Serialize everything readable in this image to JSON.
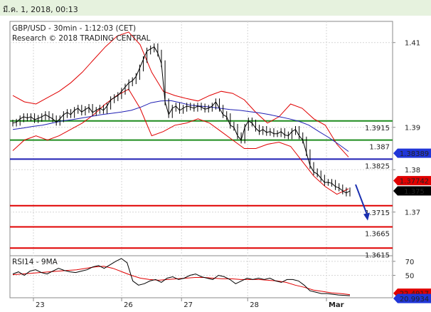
{
  "header": {
    "datetime": "มี.ค. 1, 2018, 00:13"
  },
  "chart_data": {
    "type": "candlestick-with-indicators",
    "title": "GBP/USD - 30min - 1:12:03 (CET)",
    "subtitle": "Research © 2018 TRADING CENTRAL",
    "x_tick_labels": [
      "23",
      "26",
      "27",
      "28",
      "Mar"
    ],
    "y_ticks": [
      1.37,
      1.38,
      1.39,
      1.41
    ],
    "y_tick_labels": [
      "1.37",
      "1.38",
      "1.39",
      "1.41"
    ],
    "ylim": [
      1.3597,
      1.415
    ],
    "levels": [
      {
        "value": 1.3915,
        "label": "1.3915",
        "role": "resistance",
        "color": "#1e8c1e"
      },
      {
        "value": 1.387,
        "label": "1.387",
        "role": "resistance",
        "color": "#1e8c1e"
      },
      {
        "value": 1.3825,
        "label": "1.3825",
        "role": "pivot",
        "color": "#1f1fb4"
      },
      {
        "value": 1.3715,
        "label": "1.3715",
        "role": "support",
        "color": "#e00000"
      },
      {
        "value": 1.3665,
        "label": "1.3665",
        "role": "support",
        "color": "#e00000"
      },
      {
        "value": 1.3615,
        "label": "1.3615",
        "role": "support",
        "color": "#e00000"
      }
    ],
    "price_tags": [
      {
        "value": 1.38389,
        "label": "1.38389",
        "bg": "#2036d8",
        "fg": "#ffffff"
      },
      {
        "value": 1.37742,
        "label": "1.37742",
        "bg": "#e00000",
        "fg": "#ffffff"
      },
      {
        "value": 1.375,
        "label": "1.375",
        "bg": "#000000",
        "fg": "#ffffff"
      }
    ],
    "price_path": [
      1.391,
      1.3912,
      1.392,
      1.3925,
      1.3922,
      1.3925,
      1.3918,
      1.3921,
      1.3925,
      1.393,
      1.3925,
      1.392,
      1.3912,
      1.392,
      1.393,
      1.3935,
      1.393,
      1.394,
      1.3945,
      1.3936,
      1.3942,
      1.3947,
      1.3935,
      1.394,
      1.3945,
      1.394,
      1.395,
      1.3965,
      1.397,
      1.3975,
      1.3985,
      1.3995,
      1.4005,
      1.401,
      1.402,
      1.404,
      1.406,
      1.408,
      1.4085,
      1.409,
      1.4075,
      1.405,
      1.396,
      1.393,
      1.3945,
      1.395,
      1.394,
      1.3945,
      1.395,
      1.3948,
      1.3945,
      1.395,
      1.3948,
      1.3943,
      1.3945,
      1.395,
      1.396,
      1.3945,
      1.393,
      1.3925,
      1.3905,
      1.39,
      1.388,
      1.387,
      1.39,
      1.3915,
      1.391,
      1.3898,
      1.389,
      1.3895,
      1.3888,
      1.389,
      1.3885,
      1.3885,
      1.389,
      1.3882,
      1.388,
      1.389,
      1.3895,
      1.388,
      1.387,
      1.384,
      1.381,
      1.3795,
      1.379,
      1.378,
      1.377,
      1.377,
      1.3768,
      1.376,
      1.3757,
      1.375,
      1.3745,
      1.375
    ],
    "moving_average": [
      1.3895,
      1.3898,
      1.3902,
      1.3905,
      1.391,
      1.3915,
      1.3918,
      1.3922,
      1.3926,
      1.393,
      1.3933,
      1.3936,
      1.394,
      1.3948,
      1.3958,
      1.3962,
      1.3963,
      1.3958,
      1.3952,
      1.395,
      1.3948,
      1.3945,
      1.3942,
      1.394,
      1.3937,
      1.3934,
      1.393,
      1.3925,
      1.392,
      1.3914,
      1.3905,
      1.389,
      1.3876,
      1.386,
      1.3843
    ],
    "bollinger_upper": [
      1.3975,
      1.396,
      1.3955,
      1.397,
      1.3985,
      1.4005,
      1.403,
      1.406,
      1.409,
      1.4115,
      1.4125,
      1.4095,
      1.403,
      1.3985,
      1.3975,
      1.3968,
      1.3962,
      1.3975,
      1.3985,
      1.398,
      1.3965,
      1.3935,
      1.391,
      1.3925,
      1.3955,
      1.3945,
      1.392,
      1.3905,
      1.386,
      1.383
    ],
    "bollinger_lower": [
      1.3845,
      1.387,
      1.388,
      1.387,
      1.388,
      1.3895,
      1.391,
      1.393,
      1.3955,
      1.3975,
      1.399,
      1.3945,
      1.388,
      1.389,
      1.3905,
      1.391,
      1.392,
      1.391,
      1.389,
      1.387,
      1.385,
      1.385,
      1.386,
      1.3865,
      1.3855,
      1.382,
      1.3785,
      1.376,
      1.3742,
      1.3755
    ],
    "forecast_arrow": {
      "from": 1.3765,
      "to": 1.368,
      "color": "#1a2fb0"
    },
    "rsi": {
      "label": "RSI14 - 9MA",
      "y_ticks": [
        70,
        50
      ],
      "ylim": [
        18,
        78
      ],
      "rsi_values": [
        52,
        55,
        50,
        56,
        58,
        54,
        52,
        56,
        60,
        57,
        55,
        54,
        56,
        58,
        62,
        64,
        60,
        65,
        70,
        74,
        68,
        42,
        36,
        38,
        42,
        44,
        40,
        46,
        48,
        44,
        46,
        50,
        52,
        48,
        46,
        44,
        50,
        48,
        44,
        38,
        42,
        46,
        44,
        46,
        44,
        46,
        42,
        40,
        44,
        44,
        42,
        36,
        28,
        26,
        24,
        24,
        23,
        22,
        21.5,
        21
      ],
      "ma_values": [
        51,
        52,
        53,
        54,
        55,
        56,
        57,
        58,
        60,
        62,
        63,
        60,
        55,
        50,
        46,
        44,
        43,
        44,
        45,
        46,
        47,
        47,
        46,
        45,
        45,
        44,
        44,
        44,
        43,
        42,
        40,
        36,
        33,
        29,
        27,
        25,
        24,
        22.5
      ],
      "tags": [
        {
          "value": 22.4917,
          "label": "22.4917",
          "bg": "#e00000",
          "fg": "#ffffff"
        },
        {
          "value": 20.9934,
          "label": "20.9934",
          "bg": "#2036d8",
          "fg": "#ffffff"
        }
      ]
    },
    "colors": {
      "price": "#000000",
      "moving_average": "#1f1fb4",
      "bollinger": "#e00000",
      "rsi": "#000000",
      "rsi_ma": "#e00000",
      "frame": "#888888"
    }
  }
}
